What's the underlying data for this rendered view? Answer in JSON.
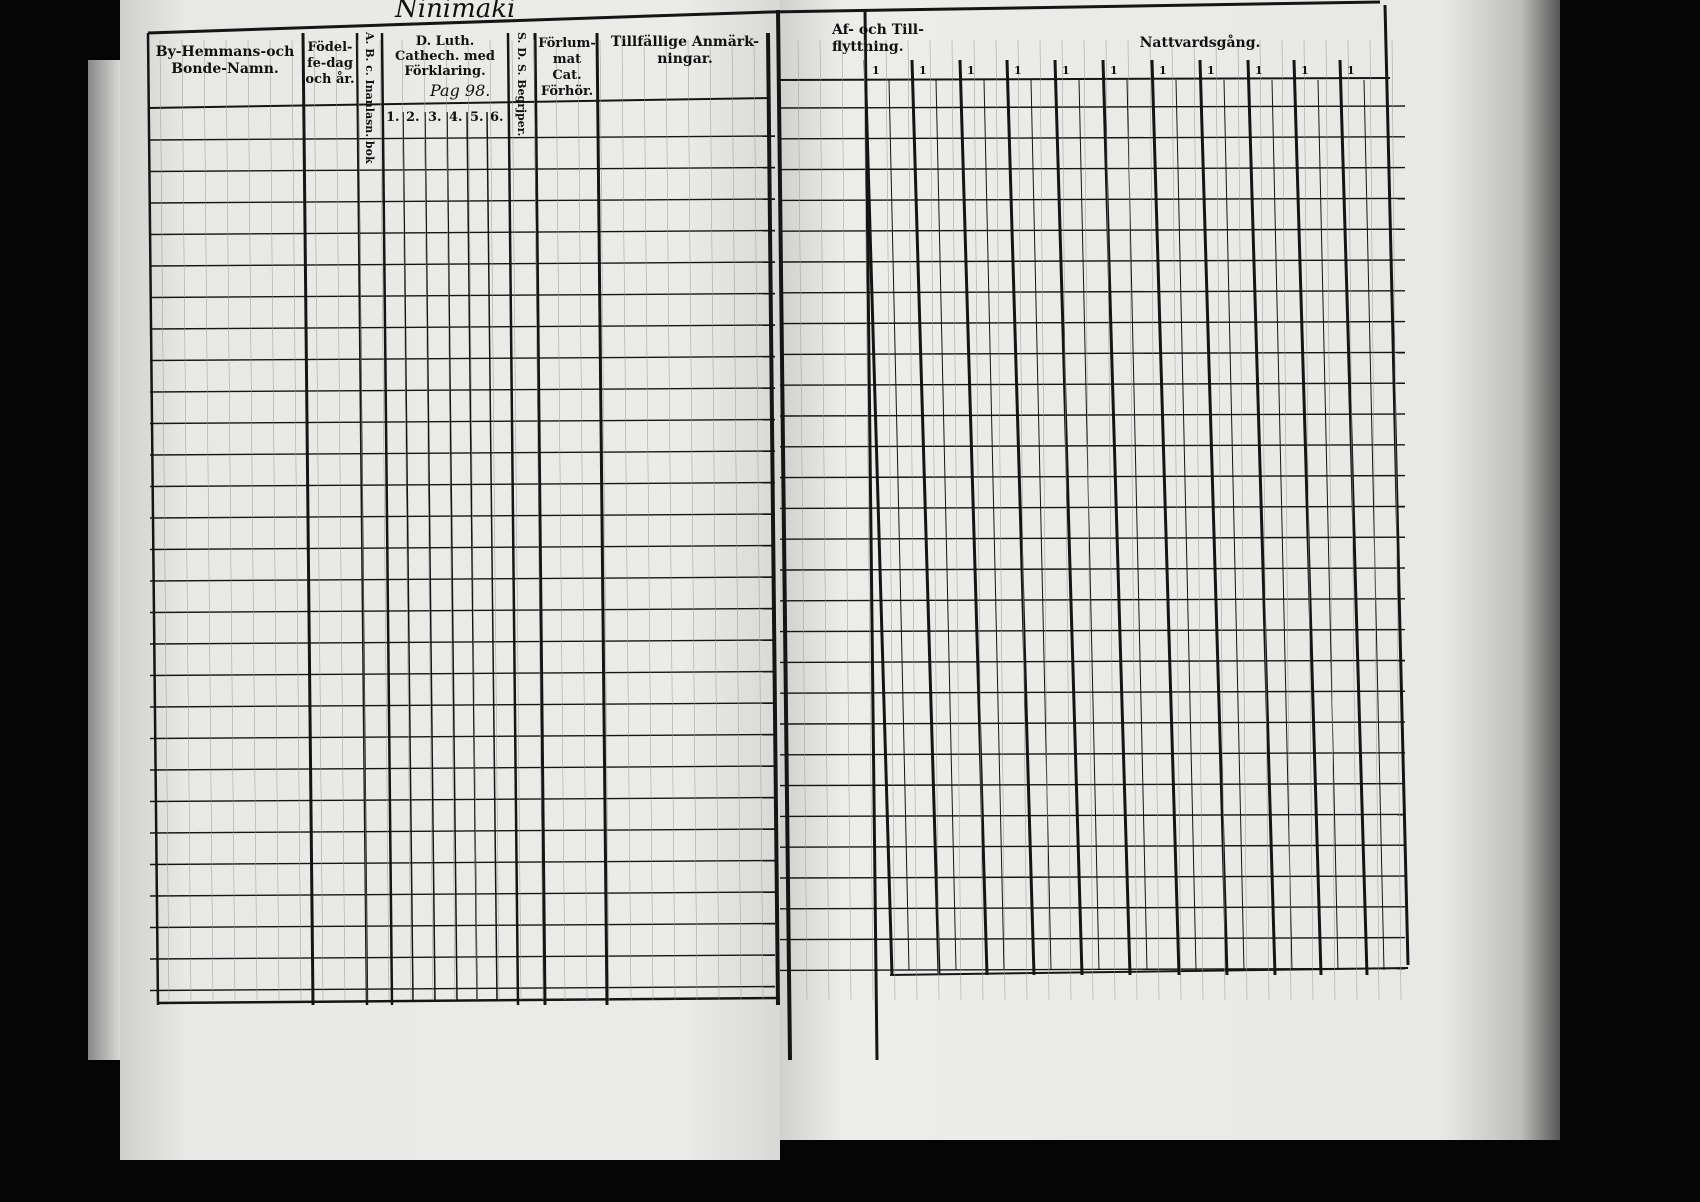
{
  "left_page": {
    "handwritten_title": "Ninimäki",
    "columns": {
      "names": "By-Hemmans-och Bonde-Namn.",
      "birth": "Födel-fe-dag och år.",
      "abc": "A. B. c. Inanlasn. bok",
      "catechism": "D. Luth. Cathech. med Förklaring.",
      "catechism_note": "Pag 98.",
      "catechism_subcols": [
        "1.",
        "2.",
        "3.",
        "4.",
        "5.",
        "6."
      ],
      "sds": "S. D. S. Begrjper.",
      "forlummat": "Förlum-mat Cat. Förhör.",
      "remarks": "Tillfällige Anmärk-ningar."
    }
  },
  "right_page": {
    "columns": {
      "moving": "Af- och Till-flyttning.",
      "communion": "Nattvardsgång.",
      "communion_subcols": [
        "1",
        "1",
        "1",
        "1",
        "1",
        "1",
        "1",
        "1",
        "1",
        "1",
        "1"
      ]
    }
  },
  "colors": {
    "paper": "#e4e4e2",
    "ink": "#111111",
    "background": "#000000"
  }
}
